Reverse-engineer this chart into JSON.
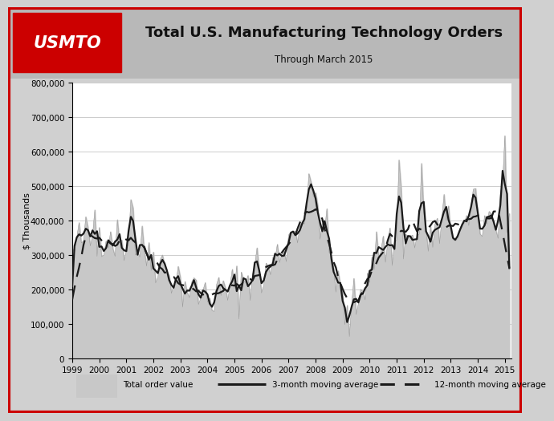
{
  "title": "Total U.S. Manufacturing Technology Orders",
  "subtitle": "Through March 2015",
  "ylabel": "$ Thousands",
  "ylim": [
    0,
    800000
  ],
  "yticks": [
    0,
    100000,
    200000,
    300000,
    400000,
    500000,
    600000,
    700000,
    800000
  ],
  "ytick_labels": [
    "0",
    "100,000",
    "200,000",
    "300,000",
    "400,000",
    "500,000",
    "600,000",
    "700,000",
    "800,000"
  ],
  "fill_color": "#c8c8c8",
  "line3m_color": "#1a1a1a",
  "line12m_color": "#1a1a1a",
  "header_bg": "#b8b8b8",
  "logo_bg": "#cc0000",
  "border_color": "#cc0000",
  "legend_items": [
    "Total order value",
    "3-month moving average",
    "12-month moving average"
  ]
}
